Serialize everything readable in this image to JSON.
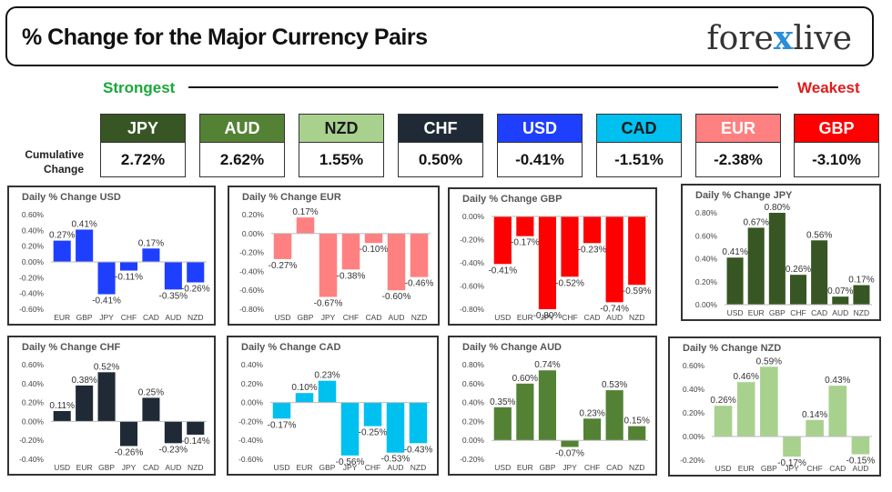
{
  "header": {
    "title": "% Change for the Major Currency Pairs",
    "logo": {
      "left": "fore",
      "mark": "x",
      "right": "live"
    }
  },
  "legend": {
    "strongest": "Strongest",
    "weakest": "Weakest",
    "cumulative_label": "Cumulative Change"
  },
  "colors": {
    "JPY": "#375623",
    "AUD": "#548235",
    "NZD": "#a9d18e",
    "CHF": "#1f2a36",
    "USD": "#1f3fff",
    "CAD": "#00c0f0",
    "EUR": "#ff8080",
    "GBP": "#ff0000"
  },
  "cumulative": [
    {
      "ccy": "JPY",
      "value": "2.72%"
    },
    {
      "ccy": "AUD",
      "value": "2.62%"
    },
    {
      "ccy": "NZD",
      "value": "1.55%"
    },
    {
      "ccy": "CHF",
      "value": "0.50%"
    },
    {
      "ccy": "USD",
      "value": "-0.41%"
    },
    {
      "ccy": "CAD",
      "value": "-1.51%"
    },
    {
      "ccy": "EUR",
      "value": "-2.38%"
    },
    {
      "ccy": "GBP",
      "value": "-3.10%"
    }
  ],
  "chart_data": [
    {
      "type": "bar",
      "base": "USD",
      "title": "Daily % Change USD",
      "categories": [
        "EUR",
        "GBP",
        "JPY",
        "CHF",
        "CAD",
        "AUD",
        "NZD"
      ],
      "values": [
        0.27,
        0.41,
        -0.41,
        -0.11,
        0.17,
        -0.35,
        -0.26
      ],
      "labels": [
        "0.27%",
        "0.41%",
        "-0.41%",
        "-0.11%",
        "0.17%",
        "-0.35%",
        "-0.26%"
      ],
      "ylim": [
        -0.6,
        0.6
      ],
      "yticks": [
        -0.6,
        -0.4,
        -0.2,
        0,
        0.2,
        0.4,
        0.6
      ],
      "tick_labels": [
        "-0.60%",
        "-0.40%",
        "-0.20%",
        "0.00%",
        "0.20%",
        "0.40%",
        "0.60%"
      ],
      "color": "#1f3fff"
    },
    {
      "type": "bar",
      "base": "EUR",
      "title": "Daily % Change EUR",
      "categories": [
        "USD",
        "GBP",
        "JPY",
        "CHF",
        "CAD",
        "AUD",
        "NZD"
      ],
      "values": [
        -0.27,
        0.17,
        -0.67,
        -0.38,
        -0.1,
        -0.6,
        -0.46
      ],
      "labels": [
        "-0.27%",
        "0.17%",
        "-0.67%",
        "-0.38%",
        "-0.10%",
        "-0.60%",
        "-0.46%"
      ],
      "ylim": [
        -0.8,
        0.2
      ],
      "yticks": [
        -0.8,
        -0.6,
        -0.4,
        -0.2,
        0,
        0.2
      ],
      "tick_labels": [
        "-0.80%",
        "-0.60%",
        "-0.40%",
        "-0.20%",
        "0.00%",
        "0.20%"
      ],
      "color": "#ff8080"
    },
    {
      "type": "bar",
      "base": "GBP",
      "title": "Daily % Change GBP",
      "categories": [
        "USD",
        "EUR",
        "JPY",
        "CHF",
        "CAD",
        "AUD",
        "NZD"
      ],
      "values": [
        -0.41,
        -0.17,
        -0.8,
        -0.52,
        -0.23,
        -0.74,
        -0.59
      ],
      "labels": [
        "-0.41%",
        "-0.17%",
        "-0.80%",
        "-0.52%",
        "-0.23%",
        "-0.74%",
        "-0.59%"
      ],
      "ylim": [
        -0.8,
        0
      ],
      "yticks": [
        -0.8,
        -0.6,
        -0.4,
        -0.2,
        0
      ],
      "tick_labels": [
        "-0.80%",
        "-0.60%",
        "-0.40%",
        "-0.20%",
        "0.00%"
      ],
      "color": "#ff0000"
    },
    {
      "type": "bar",
      "base": "JPY",
      "title": "Daily % Change JPY",
      "categories": [
        "USD",
        "EUR",
        "GBP",
        "CHF",
        "CAD",
        "AUD",
        "NZD"
      ],
      "values": [
        0.41,
        0.67,
        0.8,
        0.26,
        0.56,
        0.07,
        0.17
      ],
      "labels": [
        "0.41%",
        "0.67%",
        "0.80%",
        "0.26%",
        "0.56%",
        "0.07%",
        "0.17%"
      ],
      "ylim": [
        0,
        0.8
      ],
      "yticks": [
        0,
        0.2,
        0.4,
        0.6,
        0.8
      ],
      "tick_labels": [
        "0.00%",
        "0.20%",
        "0.40%",
        "0.60%",
        "0.80%"
      ],
      "color": "#375623"
    },
    {
      "type": "bar",
      "base": "CHF",
      "title": "Daily % Change CHF",
      "categories": [
        "USD",
        "EUR",
        "GBP",
        "JPY",
        "CAD",
        "AUD",
        "NZD"
      ],
      "values": [
        0.11,
        0.38,
        0.52,
        -0.26,
        0.25,
        -0.23,
        -0.14
      ],
      "labels": [
        "0.11%",
        "0.38%",
        "0.52%",
        "-0.26%",
        "0.25%",
        "-0.23%",
        "-0.14%"
      ],
      "ylim": [
        -0.4,
        0.6
      ],
      "yticks": [
        -0.4,
        -0.2,
        0,
        0.2,
        0.4,
        0.6
      ],
      "tick_labels": [
        "-0.40%",
        "-0.20%",
        "0.00%",
        "0.20%",
        "0.40%",
        "0.60%"
      ],
      "color": "#1f2a36"
    },
    {
      "type": "bar",
      "base": "CAD",
      "title": "Daily % Change CAD",
      "categories": [
        "USD",
        "EUR",
        "GBP",
        "JPY",
        "CHF",
        "AUD",
        "NZD"
      ],
      "values": [
        -0.17,
        0.1,
        0.23,
        -0.56,
        -0.25,
        -0.53,
        -0.43
      ],
      "labels": [
        "-0.17%",
        "0.10%",
        "0.23%",
        "-0.56%",
        "-0.25%",
        "-0.53%",
        "-0.43%"
      ],
      "ylim": [
        -0.6,
        0.4
      ],
      "yticks": [
        -0.6,
        -0.4,
        -0.2,
        0,
        0.2,
        0.4
      ],
      "tick_labels": [
        "-0.60%",
        "-0.40%",
        "-0.20%",
        "0.00%",
        "0.20%",
        "0.40%"
      ],
      "color": "#00c0f0"
    },
    {
      "type": "bar",
      "base": "AUD",
      "title": "Daily % Change AUD",
      "categories": [
        "USD",
        "EUR",
        "GBP",
        "JPY",
        "CHF",
        "CAD",
        "NZD"
      ],
      "values": [
        0.35,
        0.6,
        0.74,
        -0.07,
        0.23,
        0.53,
        0.15
      ],
      "labels": [
        "0.35%",
        "0.60%",
        "0.74%",
        "-0.07%",
        "0.23%",
        "0.53%",
        "0.15%"
      ],
      "ylim": [
        -0.2,
        0.8
      ],
      "yticks": [
        -0.2,
        0,
        0.2,
        0.4,
        0.6,
        0.8
      ],
      "tick_labels": [
        "-0.20%",
        "0.00%",
        "0.20%",
        "0.40%",
        "0.60%",
        "0.80%"
      ],
      "color": "#548235"
    },
    {
      "type": "bar",
      "base": "NZD",
      "title": "Daily % Change NZD",
      "categories": [
        "USD",
        "EUR",
        "GBP",
        "JPY",
        "CHF",
        "CAD",
        "AUD"
      ],
      "values": [
        0.26,
        0.46,
        0.59,
        -0.17,
        0.14,
        0.43,
        -0.15
      ],
      "labels": [
        "0.26%",
        "0.46%",
        "0.59%",
        "-0.17%",
        "0.14%",
        "0.43%",
        "-0.15%"
      ],
      "ylim": [
        -0.2,
        0.6
      ],
      "yticks": [
        -0.2,
        0,
        0.2,
        0.4,
        0.6
      ],
      "tick_labels": [
        "-0.20%",
        "0.00%",
        "0.20%",
        "0.40%",
        "0.60%"
      ],
      "color": "#a9d18e"
    }
  ]
}
